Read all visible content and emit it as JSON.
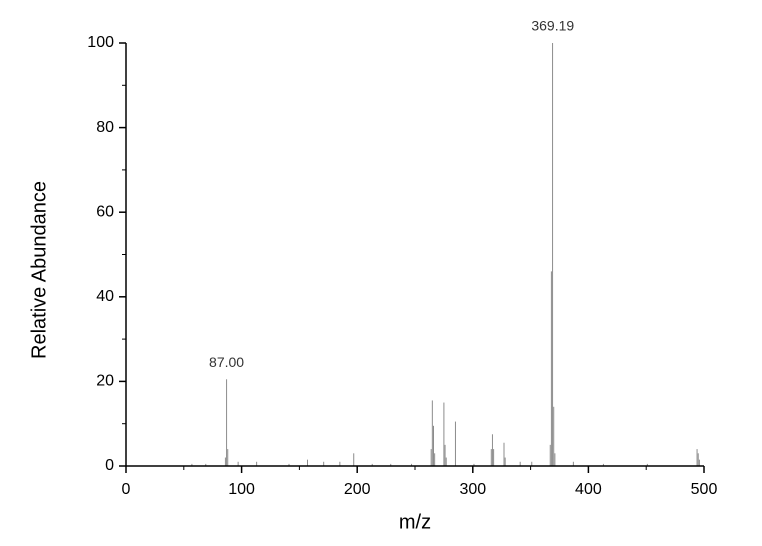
{
  "chart_data": {
    "type": "stem",
    "x_label": "m/z",
    "y_label": "Relative Abundance",
    "xlim": [
      0,
      500
    ],
    "ylim": [
      0,
      100
    ],
    "xticks": [
      0,
      100,
      200,
      300,
      400,
      500
    ],
    "yticks": [
      0,
      20,
      40,
      60,
      80,
      100
    ],
    "xminorticks": [
      50,
      150,
      250,
      350,
      450
    ],
    "yminorticks": [
      10,
      30,
      50,
      70,
      90
    ],
    "color": "#8c8c8c",
    "x": [
      57,
      69,
      86,
      87,
      88,
      97,
      113,
      141,
      157,
      171,
      185,
      197,
      213,
      229,
      247,
      264,
      265,
      266,
      267,
      275,
      276,
      277,
      285,
      301,
      316,
      317,
      318,
      327,
      328,
      341,
      351,
      367,
      368,
      369,
      370,
      371,
      387,
      413,
      451,
      494,
      495,
      496
    ],
    "values": [
      0.5,
      0.5,
      2,
      20.5,
      4,
      1,
      1,
      0.5,
      1.5,
      1,
      1,
      3,
      0.5,
      0.5,
      0.5,
      4,
      15.5,
      9.5,
      3,
      15,
      5,
      2,
      10.5,
      0.5,
      4,
      7.5,
      4,
      5.5,
      2,
      1,
      1,
      5,
      46,
      100,
      14,
      3,
      1,
      0.5,
      0.5,
      4,
      3,
      1.5
    ],
    "annotations": [
      {
        "x": 87,
        "y": 20.5,
        "text": "87.00"
      },
      {
        "x": 369.19,
        "y": 100,
        "text": "369.19"
      }
    ]
  }
}
